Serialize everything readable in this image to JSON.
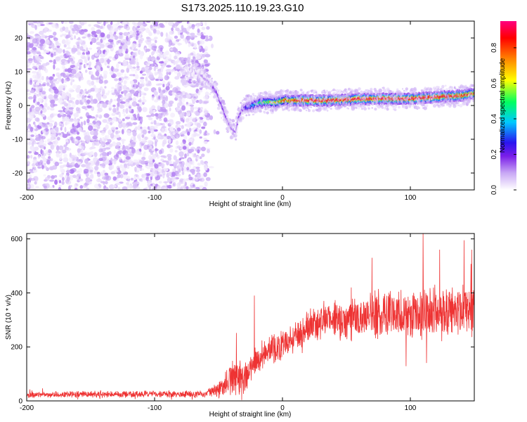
{
  "title": "S173.2025.110.19.23.G10",
  "chart_data": [
    {
      "type": "heatmap",
      "description_of_panel": "spectrogram",
      "xlabel": "Height of straight line (km)",
      "ylabel": "Frequency (Hz)",
      "xlim": [
        -200,
        150
      ],
      "ylim": [
        -25,
        25
      ],
      "xticks": [
        -200,
        -100,
        0,
        100
      ],
      "yticks": [
        -20,
        -10,
        0,
        10,
        20
      ],
      "colorbar": {
        "label": "Normalized spectral amplitude",
        "range": [
          0,
          0.95
        ],
        "ticks": [
          0.0,
          0.2,
          0.4,
          0.6,
          0.8
        ],
        "colormap": [
          "#ffffff",
          "#c9a8f5",
          "#7a1ee8",
          "#2a14f0",
          "#00c8ff",
          "#00ff60",
          "#ffff00",
          "#ff8000",
          "#ff0000",
          "#ff0080"
        ]
      },
      "noise_region": {
        "x": [
          -200,
          -58
        ],
        "y": [
          -25,
          25
        ],
        "amplitude": [
          0.02,
          0.15
        ]
      },
      "signal_ridge": {
        "x": [
          -75,
          -65,
          -58,
          -52,
          -48,
          -44,
          -40,
          -37,
          -35,
          -32,
          -25,
          -15,
          -5,
          0,
          10,
          20,
          40,
          60,
          80,
          100,
          120,
          140,
          150
        ],
        "y": [
          11,
          9,
          7,
          4,
          0,
          -4,
          -7,
          -8,
          -4,
          -1,
          0,
          1,
          1,
          1.5,
          1.5,
          1.5,
          1.5,
          2,
          2,
          2,
          2.5,
          3,
          3.5
        ],
        "peak_amplitude": [
          0.1,
          0.12,
          0.15,
          0.2,
          0.22,
          0.18,
          0.15,
          0.15,
          0.2,
          0.25,
          0.4,
          0.55,
          0.7,
          0.75,
          0.85,
          0.9,
          0.9,
          0.9,
          0.92,
          0.9,
          0.9,
          0.85,
          0.8
        ]
      }
    },
    {
      "type": "line",
      "xlabel": "Height of straight line (km)",
      "ylabel": "SNR (10 * v/v)",
      "xlim": [
        -200,
        150
      ],
      "ylim": [
        0,
        620
      ],
      "xticks": [
        -200,
        -100,
        0,
        100
      ],
      "yticks": [
        0,
        200,
        400,
        600
      ],
      "color": "#ee3333",
      "envelope": {
        "x": [
          -200,
          -150,
          -100,
          -60,
          -50,
          -45,
          -40,
          -35,
          -30,
          -25,
          -20,
          -10,
          0,
          10,
          20,
          30,
          40,
          50,
          60,
          70,
          80,
          90,
          100,
          110,
          120,
          130,
          140,
          150
        ],
        "mean": [
          22,
          25,
          25,
          25,
          40,
          60,
          80,
          90,
          80,
          120,
          150,
          180,
          210,
          240,
          270,
          295,
          305,
          300,
          310,
          310,
          320,
          325,
          320,
          330,
          330,
          320,
          330,
          325
        ],
        "noise": [
          10,
          12,
          12,
          12,
          30,
          50,
          60,
          70,
          60,
          50,
          45,
          50,
          55,
          55,
          60,
          65,
          70,
          75,
          75,
          85,
          85,
          85,
          90,
          95,
          95,
          90,
          100,
          100
        ]
      },
      "spikes": [
        {
          "x": -22,
          "y": 390
        },
        {
          "x": 70,
          "y": 530
        },
        {
          "x": 110,
          "y": 620
        },
        {
          "x": 142,
          "y": 595
        },
        {
          "x": 148,
          "y": 560
        },
        {
          "x": 123,
          "y": 560
        }
      ]
    }
  ]
}
